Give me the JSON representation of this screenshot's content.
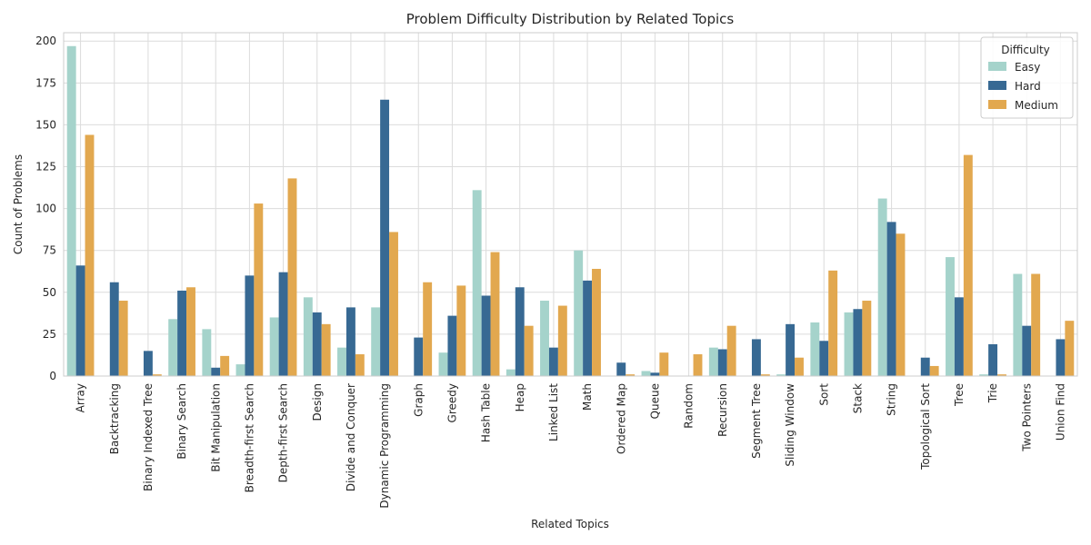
{
  "chart_data": {
    "type": "bar",
    "title": "Problem Difficulty Distribution by Related Topics",
    "xlabel": "Related Topics",
    "ylabel": "Count of Problems",
    "ylim": [
      0,
      205
    ],
    "yticks": [
      0,
      25,
      50,
      75,
      100,
      125,
      150,
      175,
      200
    ],
    "grid": true,
    "legend": {
      "title": "Difficulty",
      "position": "top-right"
    },
    "categories": [
      "Array",
      "Backtracking",
      "Binary Indexed Tree",
      "Binary Search",
      "Bit Manipulation",
      "Breadth-first Search",
      "Depth-first Search",
      "Design",
      "Divide and Conquer",
      "Dynamic Programming",
      "Graph",
      "Greedy",
      "Hash Table",
      "Heap",
      "Linked List",
      "Math",
      "Ordered Map",
      "Queue",
      "Random",
      "Recursion",
      "Segment Tree",
      "Sliding Window",
      "Sort",
      "Stack",
      "String",
      "Topological Sort",
      "Tree",
      "Trie",
      "Two Pointers",
      "Union Find"
    ],
    "series": [
      {
        "name": "Easy",
        "color": "#a5d3cb",
        "values": [
          197,
          0,
          0,
          34,
          28,
          7,
          35,
          47,
          17,
          41,
          0,
          14,
          111,
          4,
          45,
          75,
          0,
          3,
          0,
          17,
          0,
          1,
          32,
          38,
          106,
          0,
          71,
          1,
          61,
          0
        ]
      },
      {
        "name": "Hard",
        "color": "#376993",
        "values": [
          66,
          56,
          15,
          51,
          5,
          60,
          62,
          38,
          41,
          165,
          23,
          36,
          48,
          53,
          17,
          57,
          8,
          2,
          0,
          16,
          22,
          31,
          21,
          40,
          92,
          11,
          47,
          19,
          30,
          22
        ]
      },
      {
        "name": "Medium",
        "color": "#e2a84f",
        "values": [
          144,
          45,
          1,
          53,
          12,
          103,
          118,
          31,
          13,
          86,
          56,
          54,
          74,
          30,
          42,
          64,
          1,
          14,
          13,
          30,
          1,
          11,
          63,
          45,
          85,
          6,
          132,
          1,
          61,
          33
        ]
      }
    ]
  }
}
